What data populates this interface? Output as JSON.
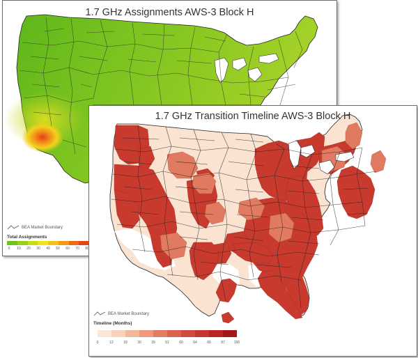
{
  "assignments_map": {
    "title": "1.7 GHz Assignments AWS-3 Block H",
    "boundary_legend": "BEA Market Boundary",
    "legend_title": "Total Assignments",
    "legend_ticks": [
      "0",
      "10",
      "20",
      "30",
      "40",
      "50",
      "60",
      "70",
      "80"
    ],
    "legend_colors": [
      "#6ec41b",
      "#9ad019",
      "#c7dd18",
      "#f0e51d",
      "#f7c218",
      "#f59a16",
      "#ee6b18",
      "#e4461a"
    ]
  },
  "transition_map": {
    "title": "1.7 GHz Transition Timeline AWS-3 Block H",
    "boundary_legend": "BEA Market Boundary",
    "legend_title": "Timeline (Months)",
    "legend_ticks": [
      "0",
      "12",
      "18",
      "30",
      "39",
      "51",
      "60",
      "64",
      "66",
      "87",
      "100"
    ],
    "legend_colors": [
      "#fbe6d6",
      "#f8d2ba",
      "#f3b79a",
      "#ec9a7b",
      "#e27d62",
      "#d9624f",
      "#cf4a3f",
      "#c63531",
      "#b92323",
      "#a51717"
    ]
  },
  "colors": {
    "assign_base": "#7cc521",
    "assign_hot": "#e8501a",
    "timeline_high": "#c93a2e",
    "timeline_low": "#fbe3d1",
    "boundary": "#222222"
  }
}
